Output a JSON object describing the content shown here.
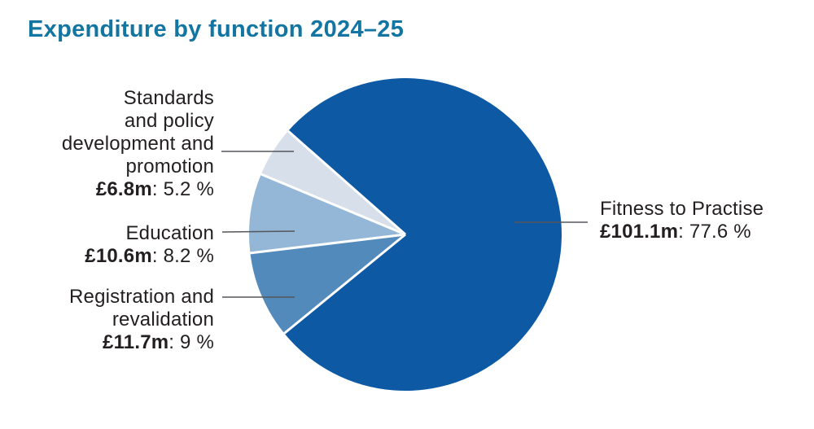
{
  "title": "Expenditure by function 2024–25",
  "colors": {
    "title_text": "#1375a1",
    "label_text": "#231f20",
    "leader_line": "#55565a",
    "slice_separator": "#ffffff",
    "background": "#ffffff"
  },
  "chart_data": {
    "type": "pie",
    "title": "Expenditure by function 2024–25",
    "direction": "clockwise",
    "start_angle_from_12_oclock_deg": -48.6,
    "legend_position": "callout-labels",
    "slices": [
      {
        "name": "Fitness to Practise",
        "amount": "£101.1m",
        "amount_millions": 101.1,
        "percent": 77.6,
        "detail": ": 77.6 %",
        "color": "#0d59a3",
        "label_lines": [
          "Fitness to Practise"
        ]
      },
      {
        "name": "Registration and revalidation",
        "amount": "£11.7m",
        "amount_millions": 11.7,
        "percent": 9,
        "detail": ": 9 %",
        "color": "#528abc",
        "label_lines": [
          "Registration and",
          "revalidation"
        ]
      },
      {
        "name": "Education",
        "amount": "£10.6m",
        "amount_millions": 10.6,
        "percent": 8.2,
        "detail": ": 8.2 %",
        "color": "#94b7d7",
        "label_lines": [
          "Education"
        ]
      },
      {
        "name": "Standards and policy development and promotion",
        "amount": "£6.8m",
        "amount_millions": 6.8,
        "percent": 5.2,
        "detail": ": 5.2 %",
        "color": "#d7e0ea",
        "label_lines": [
          "Standards",
          "and policy",
          "development and",
          "promotion"
        ]
      }
    ]
  }
}
